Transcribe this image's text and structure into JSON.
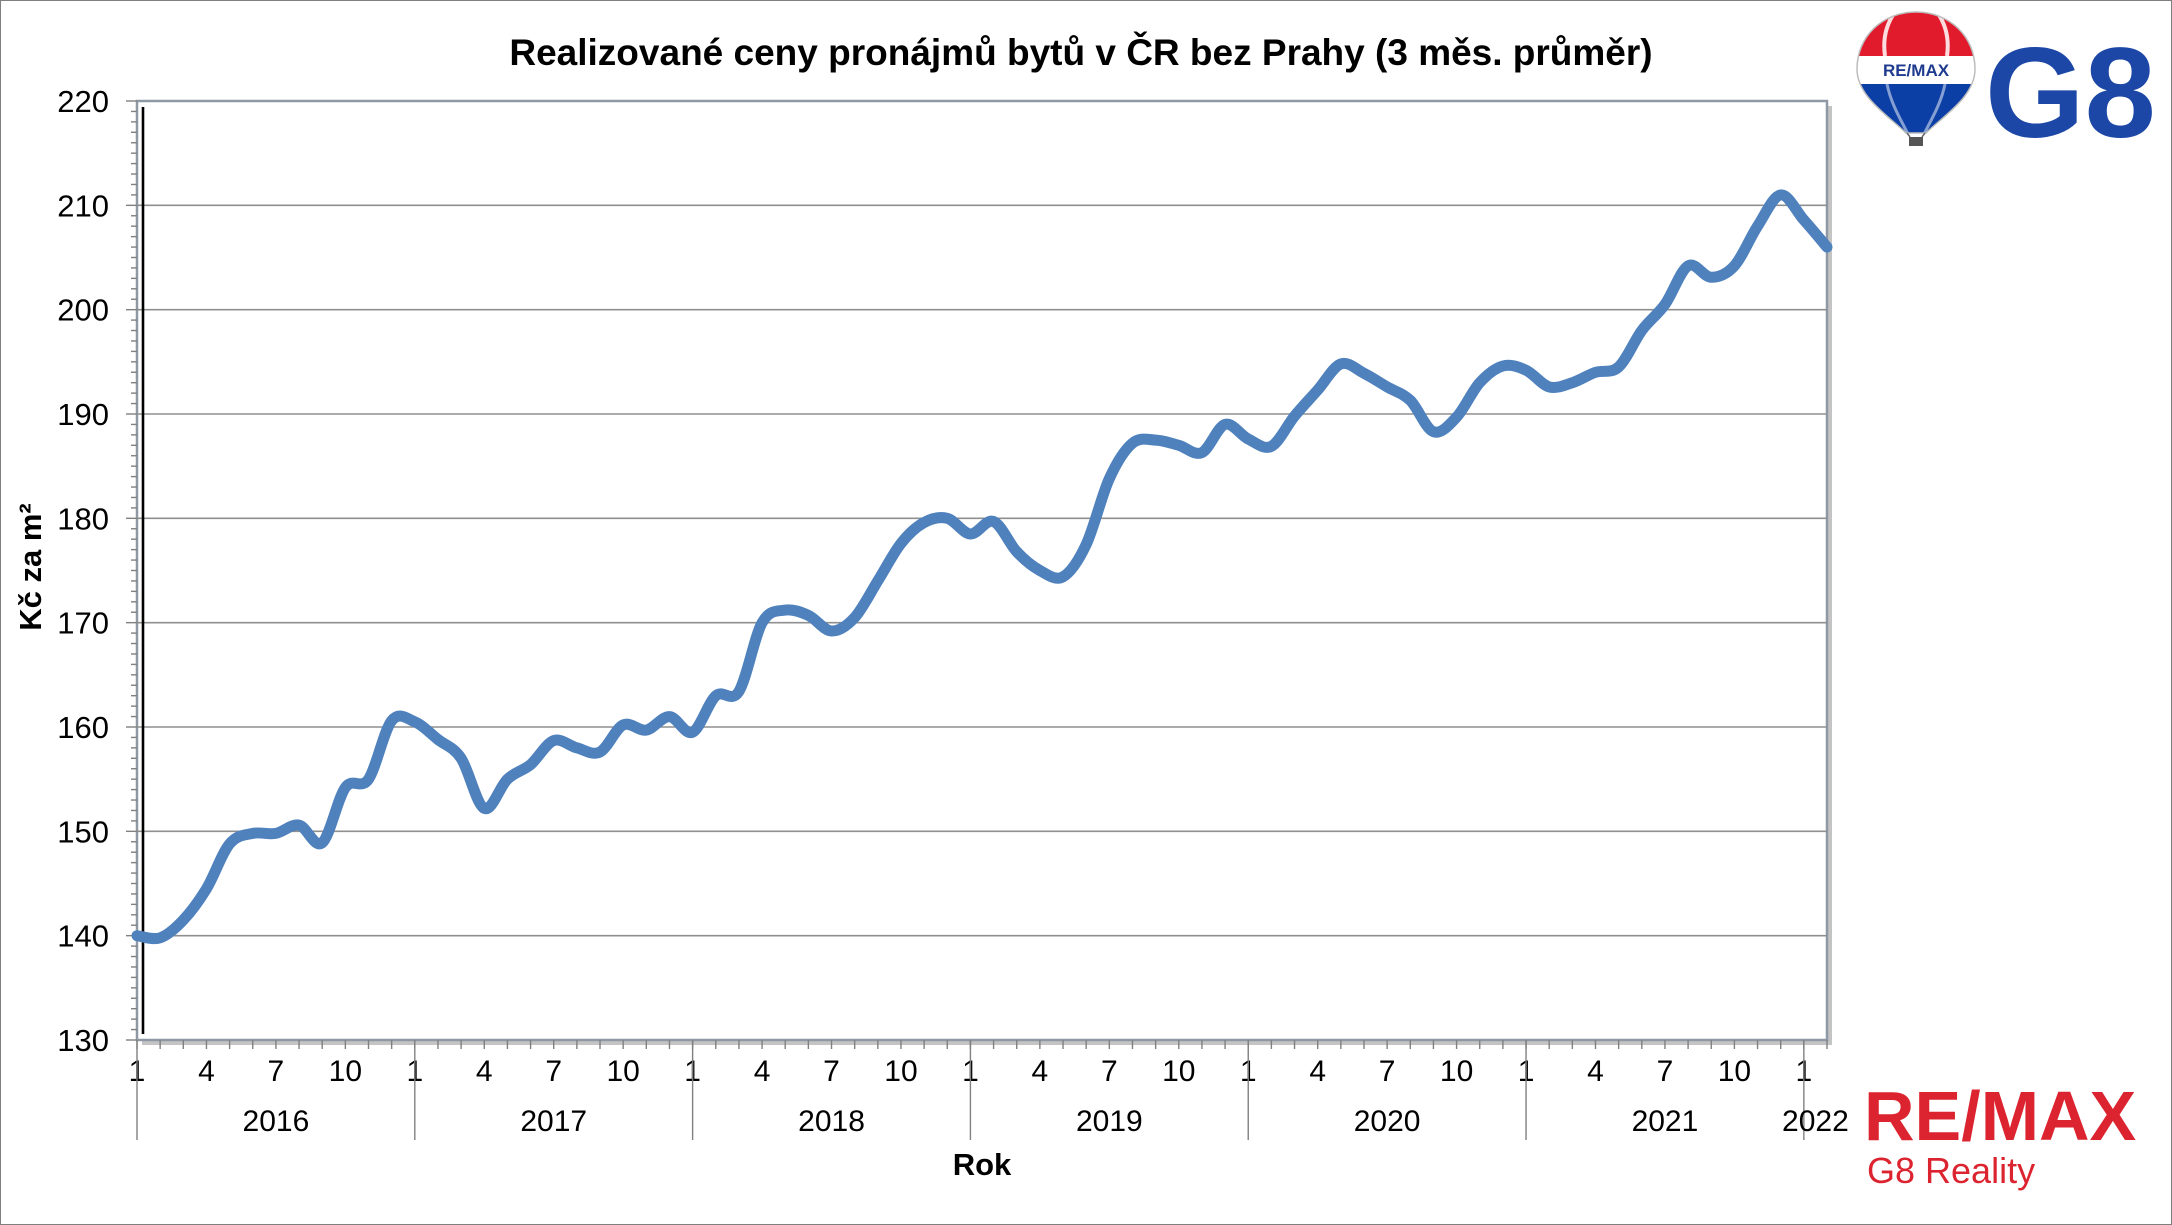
{
  "chart_data": {
    "type": "line",
    "title": "Realizované ceny pronájmů bytů v ČR bez Prahy (3 měs. průměr)",
    "xlabel": "Rok",
    "ylabel": "Kč za m²",
    "ylim": [
      130,
      220
    ],
    "y_ticks": [
      130,
      140,
      150,
      160,
      170,
      180,
      190,
      200,
      210,
      220
    ],
    "grid": true,
    "legend": "none",
    "smoothed": true,
    "years": [
      "2016",
      "2017",
      "2018",
      "2019",
      "2020",
      "2021",
      "2022"
    ],
    "month_tick_labels": [
      "1",
      "4",
      "7",
      "10",
      "1",
      "4",
      "7",
      "10",
      "1",
      "4",
      "7",
      "10",
      "1",
      "4",
      "7",
      "10",
      "1",
      "4",
      "7",
      "10",
      "1",
      "4",
      "7",
      "10",
      "1"
    ],
    "x": [
      "2016-01",
      "2016-02",
      "2016-03",
      "2016-04",
      "2016-05",
      "2016-06",
      "2016-07",
      "2016-08",
      "2016-09",
      "2016-10",
      "2016-11",
      "2016-12",
      "2017-01",
      "2017-02",
      "2017-03",
      "2017-04",
      "2017-05",
      "2017-06",
      "2017-07",
      "2017-08",
      "2017-09",
      "2017-10",
      "2017-11",
      "2017-12",
      "2018-01",
      "2018-02",
      "2018-03",
      "2018-04",
      "2018-05",
      "2018-06",
      "2018-07",
      "2018-08",
      "2018-09",
      "2018-10",
      "2018-11",
      "2018-12",
      "2019-01",
      "2019-02",
      "2019-03",
      "2019-04",
      "2019-05",
      "2019-06",
      "2019-07",
      "2019-08",
      "2019-09",
      "2019-10",
      "2019-11",
      "2019-12",
      "2020-01",
      "2020-02",
      "2020-03",
      "2020-04",
      "2020-05",
      "2020-06",
      "2020-07",
      "2020-08",
      "2020-09",
      "2020-10",
      "2020-11",
      "2020-12",
      "2021-01",
      "2021-02",
      "2021-03",
      "2021-04",
      "2021-05",
      "2021-06",
      "2021-07",
      "2021-08",
      "2021-09",
      "2021-10",
      "2021-11",
      "2021-12",
      "2022-01",
      "2022-02"
    ],
    "series": [
      {
        "color": "#4f81bd",
        "values": [
          140.0,
          139.8,
          141.5,
          144.5,
          148.8,
          149.8,
          149.8,
          150.6,
          148.9,
          154.2,
          155.0,
          160.6,
          160.5,
          158.8,
          157.0,
          152.2,
          155.0,
          156.4,
          158.7,
          158.0,
          157.6,
          160.2,
          159.7,
          161.0,
          159.5,
          163.0,
          163.4,
          170.0,
          171.2,
          170.7,
          169.2,
          170.5,
          174.0,
          177.6,
          179.6,
          180.0,
          178.5,
          179.7,
          176.8,
          175.0,
          174.4,
          177.5,
          183.8,
          187.2,
          187.5,
          187.0,
          186.3,
          189.0,
          187.6,
          186.9,
          189.8,
          192.3,
          194.8,
          193.9,
          192.6,
          191.3,
          188.3,
          189.7,
          193.0,
          194.6,
          194.2,
          192.6,
          193.0,
          194.0,
          194.5,
          198.0,
          200.5,
          204.2,
          203.1,
          204.2,
          208.0,
          211.0,
          208.6,
          206.0
        ]
      }
    ]
  },
  "logos": {
    "balloon_text": "RE/MAX",
    "g8": "G8",
    "remax": "RE/MAX",
    "g8_reality": "G8 Reality"
  },
  "colors": {
    "remax_red": "#dc2430",
    "remax_blue": "#0b3fa5",
    "g8_blue": "#1c47a6"
  }
}
